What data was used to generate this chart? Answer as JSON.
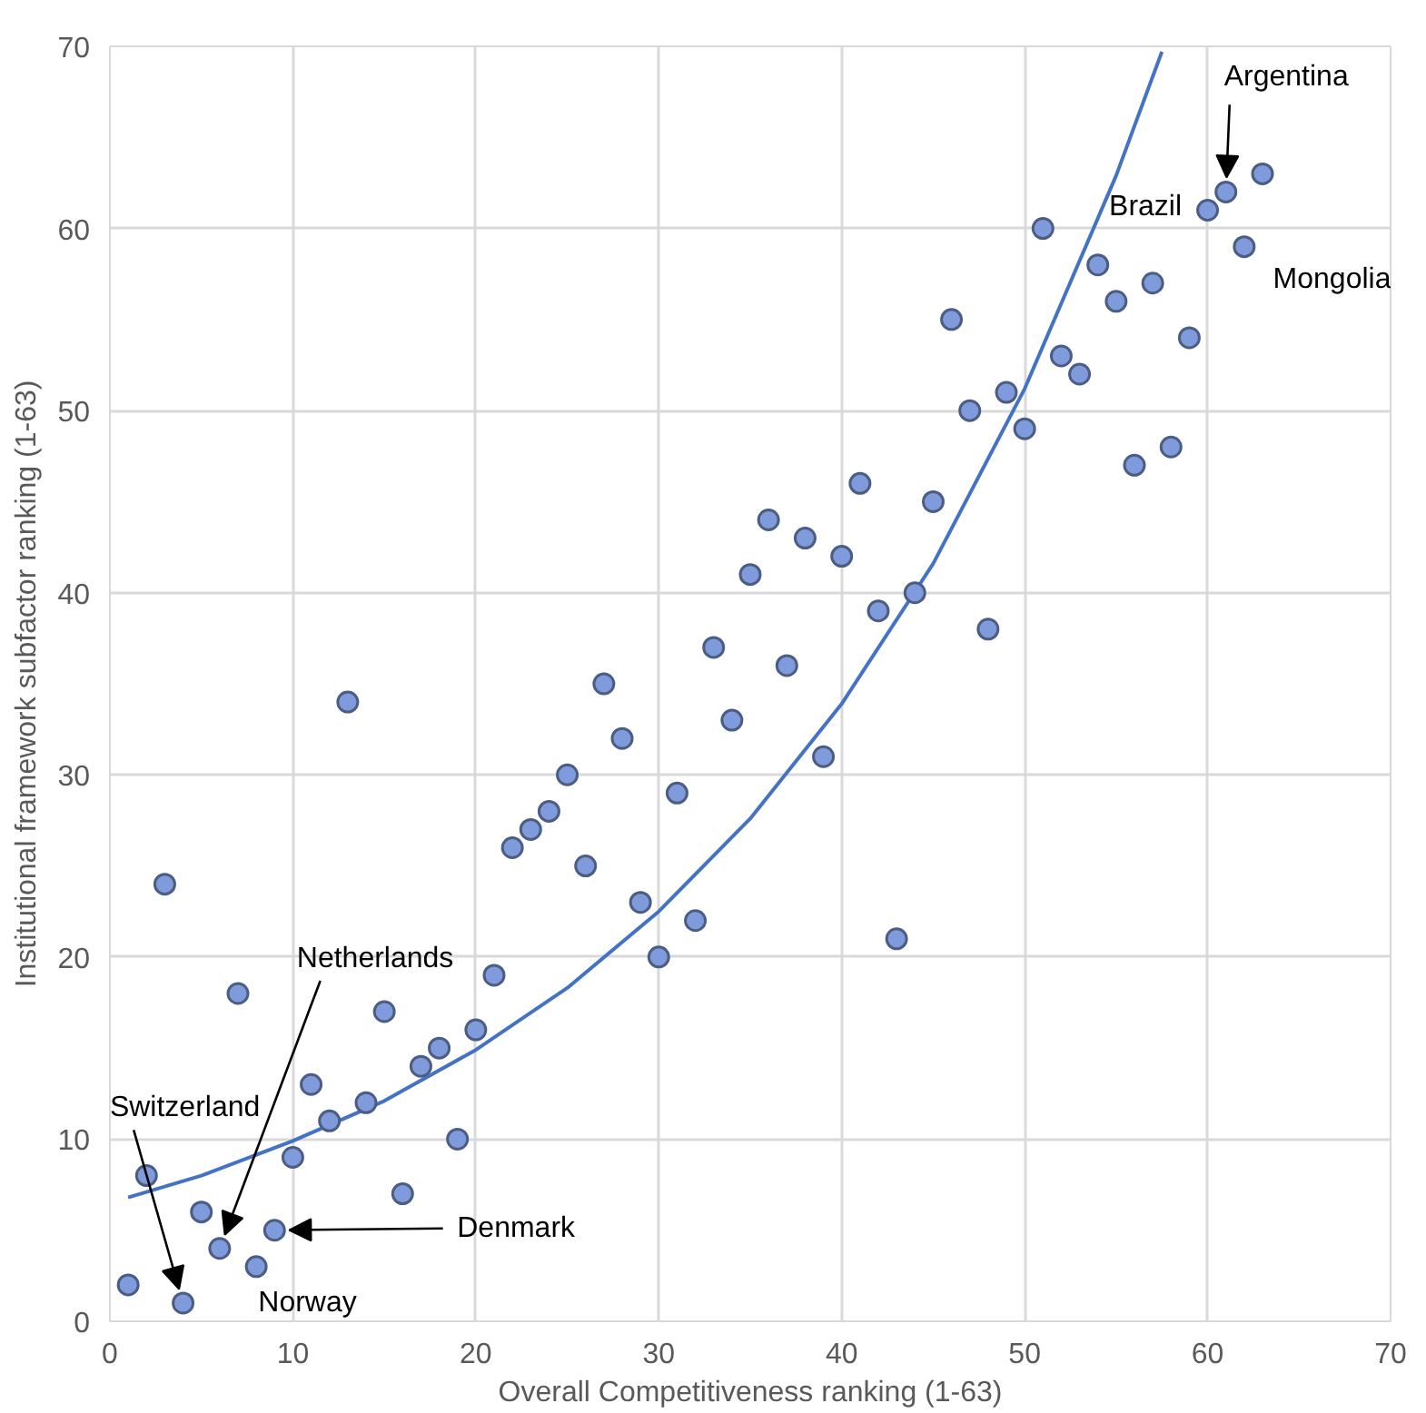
{
  "chart_data": {
    "type": "scatter",
    "xlabel": "Overall Competitiveness ranking (1-63)",
    "ylabel": "Institutional framework subfactor ranking (1-63)",
    "xlim": [
      0,
      70
    ],
    "ylim": [
      0,
      70
    ],
    "xticks": [
      0,
      10,
      20,
      30,
      40,
      50,
      60,
      70
    ],
    "yticks": [
      0,
      10,
      20,
      30,
      40,
      50,
      60,
      70
    ],
    "grid": true,
    "marker": "circle",
    "series": [
      {
        "color": "#7f9bdb",
        "x": [
          1,
          2,
          3,
          4,
          5,
          6,
          7,
          8,
          9,
          10,
          11,
          12,
          13,
          14,
          15,
          16,
          17,
          18,
          19,
          20,
          21,
          22,
          23,
          24,
          25,
          26,
          27,
          28,
          29,
          30,
          31,
          32,
          33,
          34,
          35,
          36,
          37,
          38,
          39,
          40,
          41,
          42,
          43,
          44,
          45,
          46,
          47,
          48,
          49,
          50,
          51,
          52,
          53,
          54,
          55,
          56,
          57,
          58,
          59,
          60,
          61,
          62,
          63
        ],
        "values": [
          2,
          8,
          24,
          1,
          6,
          4,
          18,
          3,
          5,
          9,
          13,
          11,
          34,
          12,
          17,
          7,
          14,
          15,
          10,
          16,
          19,
          26,
          27,
          28,
          30,
          25,
          35,
          32,
          23,
          20,
          29,
          22,
          37,
          33,
          41,
          44,
          36,
          43,
          31,
          42,
          46,
          39,
          21,
          40,
          45,
          55,
          50,
          38,
          51,
          49,
          60,
          53,
          52,
          58,
          56,
          47,
          57,
          48,
          54,
          61,
          62,
          59,
          63
        ]
      },
      {
        "type": "line",
        "marker": "none",
        "color": "#4472c4",
        "x": [
          1,
          5,
          10,
          15,
          20,
          25,
          30,
          35,
          40,
          45,
          50,
          55,
          57.5
        ],
        "values": [
          6.8,
          8.0,
          9.9,
          12.1,
          14.9,
          18.3,
          22.5,
          27.6,
          33.9,
          41.6,
          51.2,
          62.9,
          69.7
        ]
      }
    ],
    "annotations": [
      {
        "text": "Argentina",
        "x": 61,
        "y": 62
      },
      {
        "text": "Brazil",
        "x": 60,
        "y": 61
      },
      {
        "text": "Mongolia",
        "x": 62,
        "y": 59
      },
      {
        "text": "Netherlands",
        "x": 6,
        "y": 4
      },
      {
        "text": "Switzerland",
        "x": 4,
        "y": 1
      },
      {
        "text": "Denmark",
        "x": 9,
        "y": 5
      },
      {
        "text": "Norway",
        "x": 8,
        "y": 3
      }
    ]
  }
}
